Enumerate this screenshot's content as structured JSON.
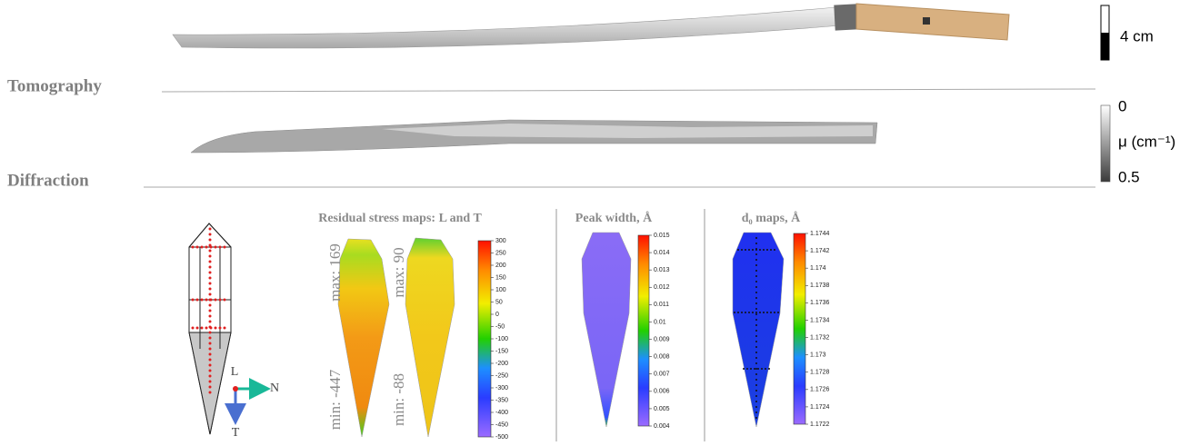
{
  "scale_bar": {
    "label": "4 cm"
  },
  "sections": [
    "Tomography",
    "Diffraction"
  ],
  "attenuation_bar": {
    "top": "0",
    "label": "μ (cm⁻¹)",
    "bottom": "0.5"
  },
  "axes": [
    "L",
    "N",
    "T"
  ],
  "panels": [
    {
      "title": "Residual stress maps: L and T",
      "maps": [
        {
          "max": "max: 169",
          "min": "min: -447"
        },
        {
          "max": "max: 90",
          "min": "min: -88"
        }
      ],
      "colorbar": [
        300,
        250,
        200,
        150,
        100,
        50,
        0,
        -50,
        -100,
        -150,
        -200,
        -250,
        -300,
        -350,
        -400,
        -450,
        -500
      ]
    },
    {
      "title": "Peak width, Å",
      "colorbar": [
        0.015,
        0.014,
        0.013,
        0.012,
        0.011,
        0.01,
        0.009,
        0.008,
        0.007,
        0.006,
        0.005,
        0.004
      ]
    },
    {
      "title": "d₀ maps, Å",
      "colorbar": [
        1.1744,
        1.1742,
        1.174,
        1.1738,
        1.1736,
        1.1734,
        1.1732,
        1.173,
        1.1728,
        1.1726,
        1.1724,
        1.1722
      ]
    }
  ]
}
